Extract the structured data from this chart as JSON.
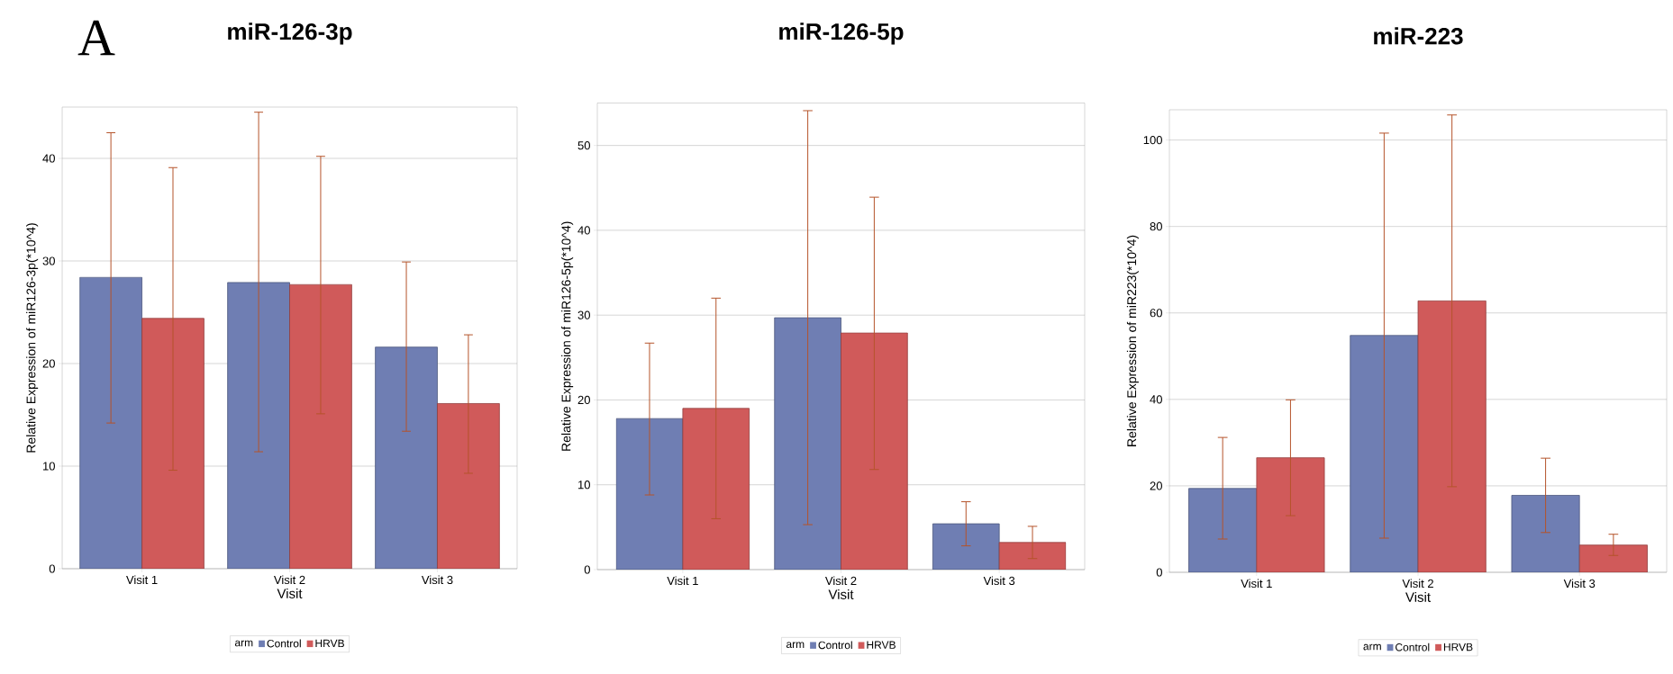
{
  "chart_data": [
    {
      "type": "bar",
      "title": "miR-126-3p",
      "xlabel": "Visit",
      "ylabel": "Relative Expression of miR126-3p(*10^4)",
      "legend_title": "arm",
      "annotations": [
        "A"
      ],
      "categories": [
        "Visit 1",
        "Visit 2",
        "Visit 3"
      ],
      "series": [
        {
          "name": "Control",
          "color": "#6f7eb3",
          "values": [
            28.4,
            27.9,
            21.6
          ],
          "errors": [
            [
              14.2,
              42.5
            ],
            [
              11.4,
              44.5
            ],
            [
              13.4,
              29.9
            ]
          ]
        },
        {
          "name": "HRVB",
          "color": "#d05a5a",
          "values": [
            24.4,
            27.7,
            16.1
          ],
          "errors": [
            [
              9.6,
              39.1
            ],
            [
              15.1,
              40.2
            ],
            [
              9.3,
              22.8
            ]
          ]
        }
      ],
      "ylim": [
        0,
        45
      ],
      "yticks": [
        0,
        10,
        20,
        30,
        40
      ],
      "grid": "y",
      "legend": "bottom"
    },
    {
      "type": "bar",
      "title": "miR-126-5p",
      "xlabel": "Visit",
      "ylabel": "Relative Expression of miR126-5p(*10^4)",
      "legend_title": "arm",
      "categories": [
        "Visit 1",
        "Visit 2",
        "Visit 3"
      ],
      "series": [
        {
          "name": "Control",
          "color": "#6f7eb3",
          "values": [
            17.8,
            29.7,
            5.4
          ],
          "errors": [
            [
              8.8,
              26.7
            ],
            [
              5.3,
              54.1
            ],
            [
              2.8,
              8.0
            ]
          ]
        },
        {
          "name": "HRVB",
          "color": "#d05a5a",
          "values": [
            19.0,
            27.9,
            3.2
          ],
          "errors": [
            [
              6.0,
              32.0
            ],
            [
              11.8,
              43.9
            ],
            [
              1.3,
              5.1
            ]
          ]
        }
      ],
      "ylim": [
        0,
        55
      ],
      "yticks": [
        0,
        10,
        20,
        30,
        40,
        50
      ],
      "grid": "y",
      "legend": "bottom"
    },
    {
      "type": "bar",
      "title": "miR-223",
      "xlabel": "Visit",
      "ylabel": "Relative Expression of miR223(*10^4)",
      "legend_title": "arm",
      "categories": [
        "Visit 1",
        "Visit 2",
        "Visit 3"
      ],
      "series": [
        {
          "name": "Control",
          "color": "#6f7eb3",
          "values": [
            19.4,
            54.8,
            17.8
          ],
          "errors": [
            [
              7.7,
              31.2
            ],
            [
              7.9,
              101.6
            ],
            [
              9.2,
              26.4
            ]
          ]
        },
        {
          "name": "HRVB",
          "color": "#d05a5a",
          "values": [
            26.5,
            62.8,
            6.3
          ],
          "errors": [
            [
              13.1,
              39.9
            ],
            [
              19.8,
              105.8
            ],
            [
              3.9,
              8.8
            ]
          ]
        }
      ],
      "ylim": [
        0,
        107
      ],
      "yticks": [
        0,
        20,
        40,
        60,
        80,
        100
      ],
      "grid": "y",
      "legend": "bottom"
    }
  ]
}
